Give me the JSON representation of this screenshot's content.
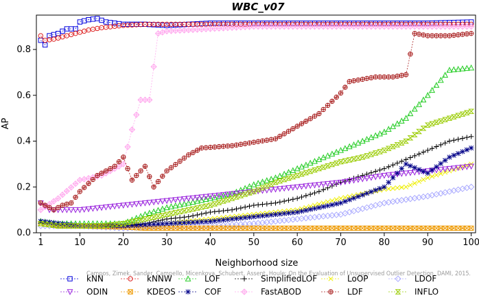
{
  "chart_data": {
    "type": "line",
    "title": "WBC_v07",
    "xlabel": "Neighborhood size",
    "ylabel": "AP",
    "xlim": [
      0,
      101
    ],
    "ylim": [
      0,
      0.95
    ],
    "xticks": [
      1,
      10,
      20,
      30,
      40,
      50,
      60,
      70,
      80,
      90,
      100
    ],
    "yticks": [
      0.0,
      0.2,
      0.4,
      0.6,
      0.8
    ],
    "ytick_labels": [
      "0.0",
      "0.2",
      "0.4",
      "0.6",
      "0.8"
    ],
    "grid": false,
    "legend_position": "bottom",
    "watermark": "Campos, Zimek, Sander, Campello, Micenkova, Schubert, Assent, Houle: On the Evaluation of Unsupervised Outlier Detection. DAMI, 2015.",
    "series": [
      {
        "name": "kNN",
        "color": "#0000dd",
        "marker": "square",
        "points": [
          [
            1,
            0.84
          ],
          [
            2,
            0.82
          ],
          [
            3,
            0.86
          ],
          [
            5,
            0.87
          ],
          [
            7,
            0.89
          ],
          [
            9,
            0.89
          ],
          [
            10,
            0.92
          ],
          [
            12,
            0.93
          ],
          [
            14,
            0.935
          ],
          [
            16,
            0.92
          ],
          [
            20,
            0.91
          ],
          [
            25,
            0.91
          ],
          [
            30,
            0.905
          ],
          [
            35,
            0.91
          ],
          [
            40,
            0.915
          ],
          [
            50,
            0.915
          ],
          [
            60,
            0.915
          ],
          [
            70,
            0.915
          ],
          [
            80,
            0.915
          ],
          [
            90,
            0.915
          ],
          [
            100,
            0.92
          ]
        ]
      },
      {
        "name": "kNNW",
        "color": "#dd2222",
        "marker": "circle",
        "points": [
          [
            1,
            0.86
          ],
          [
            2,
            0.84
          ],
          [
            4,
            0.845
          ],
          [
            6,
            0.855
          ],
          [
            8,
            0.865
          ],
          [
            10,
            0.875
          ],
          [
            12,
            0.885
          ],
          [
            15,
            0.895
          ],
          [
            20,
            0.905
          ],
          [
            25,
            0.91
          ],
          [
            30,
            0.91
          ],
          [
            40,
            0.91
          ],
          [
            50,
            0.91
          ],
          [
            60,
            0.91
          ],
          [
            70,
            0.91
          ],
          [
            80,
            0.91
          ],
          [
            90,
            0.91
          ],
          [
            100,
            0.91
          ]
        ]
      },
      {
        "name": "LOF",
        "color": "#22cc22",
        "marker": "triangle-up",
        "points": [
          [
            1,
            0.05
          ],
          [
            5,
            0.04
          ],
          [
            10,
            0.04
          ],
          [
            15,
            0.04
          ],
          [
            20,
            0.04
          ],
          [
            25,
            0.08
          ],
          [
            30,
            0.11
          ],
          [
            35,
            0.13
          ],
          [
            40,
            0.15
          ],
          [
            45,
            0.17
          ],
          [
            50,
            0.21
          ],
          [
            55,
            0.24
          ],
          [
            60,
            0.28
          ],
          [
            65,
            0.32
          ],
          [
            70,
            0.36
          ],
          [
            75,
            0.4
          ],
          [
            80,
            0.44
          ],
          [
            85,
            0.5
          ],
          [
            90,
            0.6
          ],
          [
            95,
            0.71
          ],
          [
            100,
            0.72
          ]
        ]
      },
      {
        "name": "SimplifiedLOF",
        "color": "#000000",
        "marker": "plus",
        "points": [
          [
            1,
            0.05
          ],
          [
            5,
            0.03
          ],
          [
            10,
            0.03
          ],
          [
            20,
            0.03
          ],
          [
            25,
            0.04
          ],
          [
            30,
            0.06
          ],
          [
            35,
            0.07
          ],
          [
            40,
            0.09
          ],
          [
            45,
            0.1
          ],
          [
            50,
            0.12
          ],
          [
            55,
            0.13
          ],
          [
            60,
            0.15
          ],
          [
            65,
            0.18
          ],
          [
            70,
            0.22
          ],
          [
            75,
            0.25
          ],
          [
            80,
            0.28
          ],
          [
            85,
            0.32
          ],
          [
            90,
            0.36
          ],
          [
            95,
            0.4
          ],
          [
            100,
            0.42
          ]
        ]
      },
      {
        "name": "LoOP",
        "color": "#eeee00",
        "marker": "x",
        "points": [
          [
            1,
            0.04
          ],
          [
            5,
            0.03
          ],
          [
            10,
            0.03
          ],
          [
            20,
            0.03
          ],
          [
            30,
            0.04
          ],
          [
            40,
            0.06
          ],
          [
            50,
            0.08
          ],
          [
            60,
            0.1
          ],
          [
            70,
            0.15
          ],
          [
            80,
            0.19
          ],
          [
            85,
            0.2
          ],
          [
            90,
            0.24
          ],
          [
            100,
            0.3
          ]
        ]
      },
      {
        "name": "LDOF",
        "color": "#aaaaff",
        "marker": "diamond",
        "points": [
          [
            1,
            0.03
          ],
          [
            10,
            0.03
          ],
          [
            20,
            0.02
          ],
          [
            30,
            0.03
          ],
          [
            40,
            0.03
          ],
          [
            50,
            0.04
          ],
          [
            60,
            0.06
          ],
          [
            70,
            0.08
          ],
          [
            80,
            0.13
          ],
          [
            90,
            0.16
          ],
          [
            100,
            0.2
          ]
        ]
      },
      {
        "name": "ODIN",
        "color": "#9922dd",
        "marker": "triangle-down",
        "points": [
          [
            1,
            0.13
          ],
          [
            3,
            0.1
          ],
          [
            5,
            0.1
          ],
          [
            10,
            0.1
          ],
          [
            15,
            0.11
          ],
          [
            20,
            0.12
          ],
          [
            25,
            0.13
          ],
          [
            30,
            0.14
          ],
          [
            40,
            0.16
          ],
          [
            50,
            0.18
          ],
          [
            60,
            0.2
          ],
          [
            70,
            0.22
          ],
          [
            80,
            0.25
          ],
          [
            90,
            0.27
          ],
          [
            100,
            0.29
          ]
        ]
      },
      {
        "name": "KDEOS",
        "color": "#ee9900",
        "marker": "square-x",
        "points": [
          [
            1,
            0.04
          ],
          [
            5,
            0.03
          ],
          [
            10,
            0.03
          ],
          [
            20,
            0.025
          ],
          [
            25,
            0.02
          ],
          [
            30,
            0.02
          ],
          [
            40,
            0.02
          ],
          [
            60,
            0.02
          ],
          [
            80,
            0.02
          ],
          [
            100,
            0.02
          ]
        ]
      },
      {
        "name": "COF",
        "color": "#000088",
        "marker": "star",
        "points": [
          [
            1,
            0.05
          ],
          [
            10,
            0.03
          ],
          [
            20,
            0.03
          ],
          [
            30,
            0.04
          ],
          [
            40,
            0.05
          ],
          [
            50,
            0.07
          ],
          [
            60,
            0.09
          ],
          [
            70,
            0.13
          ],
          [
            80,
            0.2
          ],
          [
            85,
            0.3
          ],
          [
            90,
            0.26
          ],
          [
            95,
            0.33
          ],
          [
            100,
            0.37
          ]
        ]
      },
      {
        "name": "FastABOD",
        "color": "#ffaaee",
        "marker": "diamond-x",
        "points": [
          [
            1,
            0.1
          ],
          [
            5,
            0.15
          ],
          [
            10,
            0.23
          ],
          [
            15,
            0.25
          ],
          [
            20,
            0.3
          ],
          [
            22,
            0.45
          ],
          [
            24,
            0.58
          ],
          [
            26,
            0.58
          ],
          [
            28,
            0.87
          ],
          [
            30,
            0.88
          ],
          [
            40,
            0.89
          ],
          [
            50,
            0.9
          ],
          [
            60,
            0.9
          ],
          [
            70,
            0.9
          ],
          [
            80,
            0.9
          ],
          [
            90,
            0.9
          ],
          [
            100,
            0.9
          ]
        ]
      },
      {
        "name": "LDF",
        "color": "#aa2222",
        "marker": "circle-plus",
        "points": [
          [
            1,
            0.13
          ],
          [
            4,
            0.1
          ],
          [
            6,
            0.12
          ],
          [
            8,
            0.13
          ],
          [
            10,
            0.18
          ],
          [
            14,
            0.25
          ],
          [
            18,
            0.29
          ],
          [
            20,
            0.33
          ],
          [
            22,
            0.23
          ],
          [
            25,
            0.29
          ],
          [
            27,
            0.2
          ],
          [
            30,
            0.27
          ],
          [
            35,
            0.34
          ],
          [
            38,
            0.37
          ],
          [
            45,
            0.38
          ],
          [
            55,
            0.41
          ],
          [
            65,
            0.52
          ],
          [
            70,
            0.61
          ],
          [
            72,
            0.66
          ],
          [
            78,
            0.68
          ],
          [
            82,
            0.68
          ],
          [
            85,
            0.69
          ],
          [
            87,
            0.87
          ],
          [
            90,
            0.86
          ],
          [
            95,
            0.86
          ],
          [
            100,
            0.87
          ]
        ]
      },
      {
        "name": "INFLO",
        "color": "#99cc00",
        "marker": "hourglass",
        "points": [
          [
            1,
            0.04
          ],
          [
            5,
            0.03
          ],
          [
            10,
            0.03
          ],
          [
            15,
            0.03
          ],
          [
            20,
            0.04
          ],
          [
            25,
            0.06
          ],
          [
            30,
            0.08
          ],
          [
            35,
            0.1
          ],
          [
            40,
            0.12
          ],
          [
            45,
            0.15
          ],
          [
            50,
            0.18
          ],
          [
            55,
            0.22
          ],
          [
            60,
            0.25
          ],
          [
            65,
            0.28
          ],
          [
            70,
            0.31
          ],
          [
            75,
            0.33
          ],
          [
            80,
            0.36
          ],
          [
            85,
            0.4
          ],
          [
            90,
            0.47
          ],
          [
            95,
            0.5
          ],
          [
            100,
            0.53
          ]
        ]
      }
    ]
  }
}
